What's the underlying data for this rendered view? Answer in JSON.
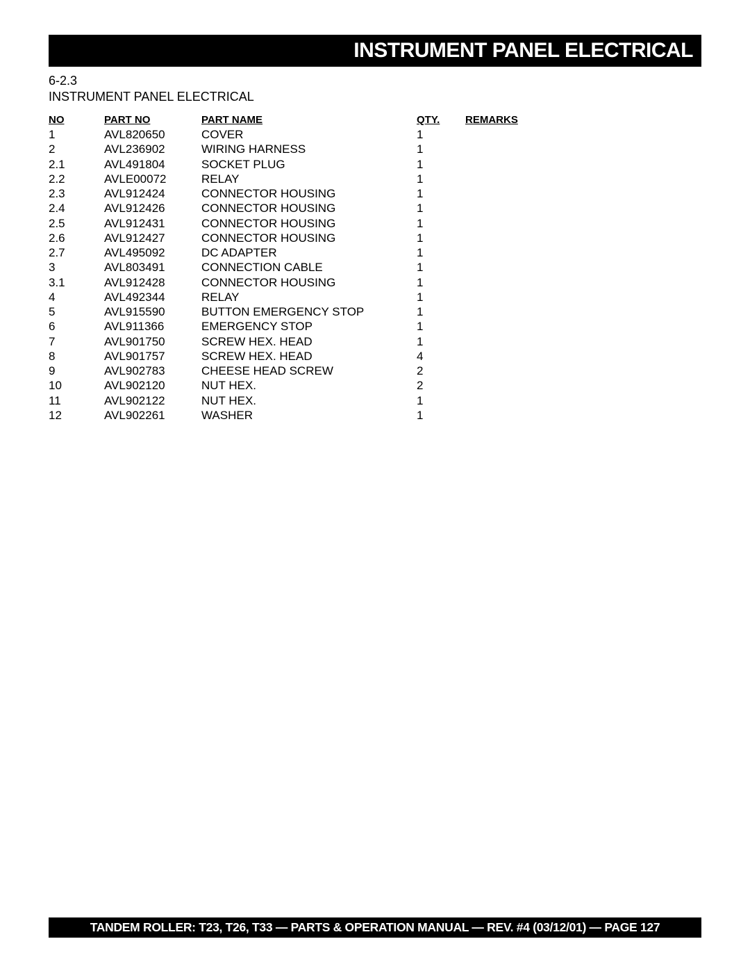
{
  "header": {
    "title": "INSTRUMENT PANEL ELECTRICAL"
  },
  "section": {
    "number": "6-2.3",
    "title": "INSTRUMENT PANEL ELECTRICAL"
  },
  "table": {
    "columns": {
      "no": "NO",
      "part_no": "PART NO",
      "part_name": "PART NAME",
      "qty": "QTY.",
      "remarks": "REMARKS"
    },
    "rows": [
      {
        "no": "1",
        "part_no": "AVL820650",
        "part_name": "COVER",
        "qty": "1",
        "remarks": ""
      },
      {
        "no": "2",
        "part_no": "AVL236902",
        "part_name": "WIRING HARNESS",
        "qty": "1",
        "remarks": ""
      },
      {
        "no": "2.1",
        "part_no": "AVL491804",
        "part_name": "SOCKET PLUG",
        "qty": "1",
        "remarks": ""
      },
      {
        "no": "2.2",
        "part_no": "AVLE00072",
        "part_name": "RELAY",
        "qty": "1",
        "remarks": ""
      },
      {
        "no": "2.3",
        "part_no": "AVL912424",
        "part_name": "CONNECTOR HOUSING",
        "qty": "1",
        "remarks": ""
      },
      {
        "no": "2.4",
        "part_no": "AVL912426",
        "part_name": "CONNECTOR HOUSING",
        "qty": "1",
        "remarks": ""
      },
      {
        "no": "2.5",
        "part_no": "AVL912431",
        "part_name": "CONNECTOR HOUSING",
        "qty": "1",
        "remarks": ""
      },
      {
        "no": "2.6",
        "part_no": "AVL912427",
        "part_name": "CONNECTOR HOUSING",
        "qty": "1",
        "remarks": ""
      },
      {
        "no": "2.7",
        "part_no": "AVL495092",
        "part_name": "DC ADAPTER",
        "qty": "1",
        "remarks": ""
      },
      {
        "no": "3",
        "part_no": "AVL803491",
        "part_name": "CONNECTION CABLE",
        "qty": "1",
        "remarks": ""
      },
      {
        "no": "3.1",
        "part_no": "AVL912428",
        "part_name": "CONNECTOR HOUSING",
        "qty": "1",
        "remarks": ""
      },
      {
        "no": "4",
        "part_no": "AVL492344",
        "part_name": "RELAY",
        "qty": "1",
        "remarks": ""
      },
      {
        "no": "5",
        "part_no": "AVL915590",
        "part_name": "BUTTON EMERGENCY STOP",
        "qty": "1",
        "remarks": ""
      },
      {
        "no": "6",
        "part_no": "AVL911366",
        "part_name": "EMERGENCY STOP",
        "qty": "1",
        "remarks": ""
      },
      {
        "no": "7",
        "part_no": "AVL901750",
        "part_name": "SCREW HEX. HEAD",
        "qty": "1",
        "remarks": ""
      },
      {
        "no": "8",
        "part_no": "AVL901757",
        "part_name": "SCREW HEX. HEAD",
        "qty": "4",
        "remarks": ""
      },
      {
        "no": "9",
        "part_no": "AVL902783",
        "part_name": "CHEESE HEAD SCREW",
        "qty": "2",
        "remarks": ""
      },
      {
        "no": "10",
        "part_no": "AVL902120",
        "part_name": "NUT HEX.",
        "qty": "2",
        "remarks": ""
      },
      {
        "no": "11",
        "part_no": "AVL902122",
        "part_name": "NUT HEX.",
        "qty": "1",
        "remarks": ""
      },
      {
        "no": "12",
        "part_no": "AVL902261",
        "part_name": "WASHER",
        "qty": "1",
        "remarks": ""
      }
    ]
  },
  "footer": {
    "text": "TANDEM ROLLER: T23, T26, T33 — PARTS & OPERATION MANUAL — REV. #4 (03/12/01) — PAGE 127"
  }
}
